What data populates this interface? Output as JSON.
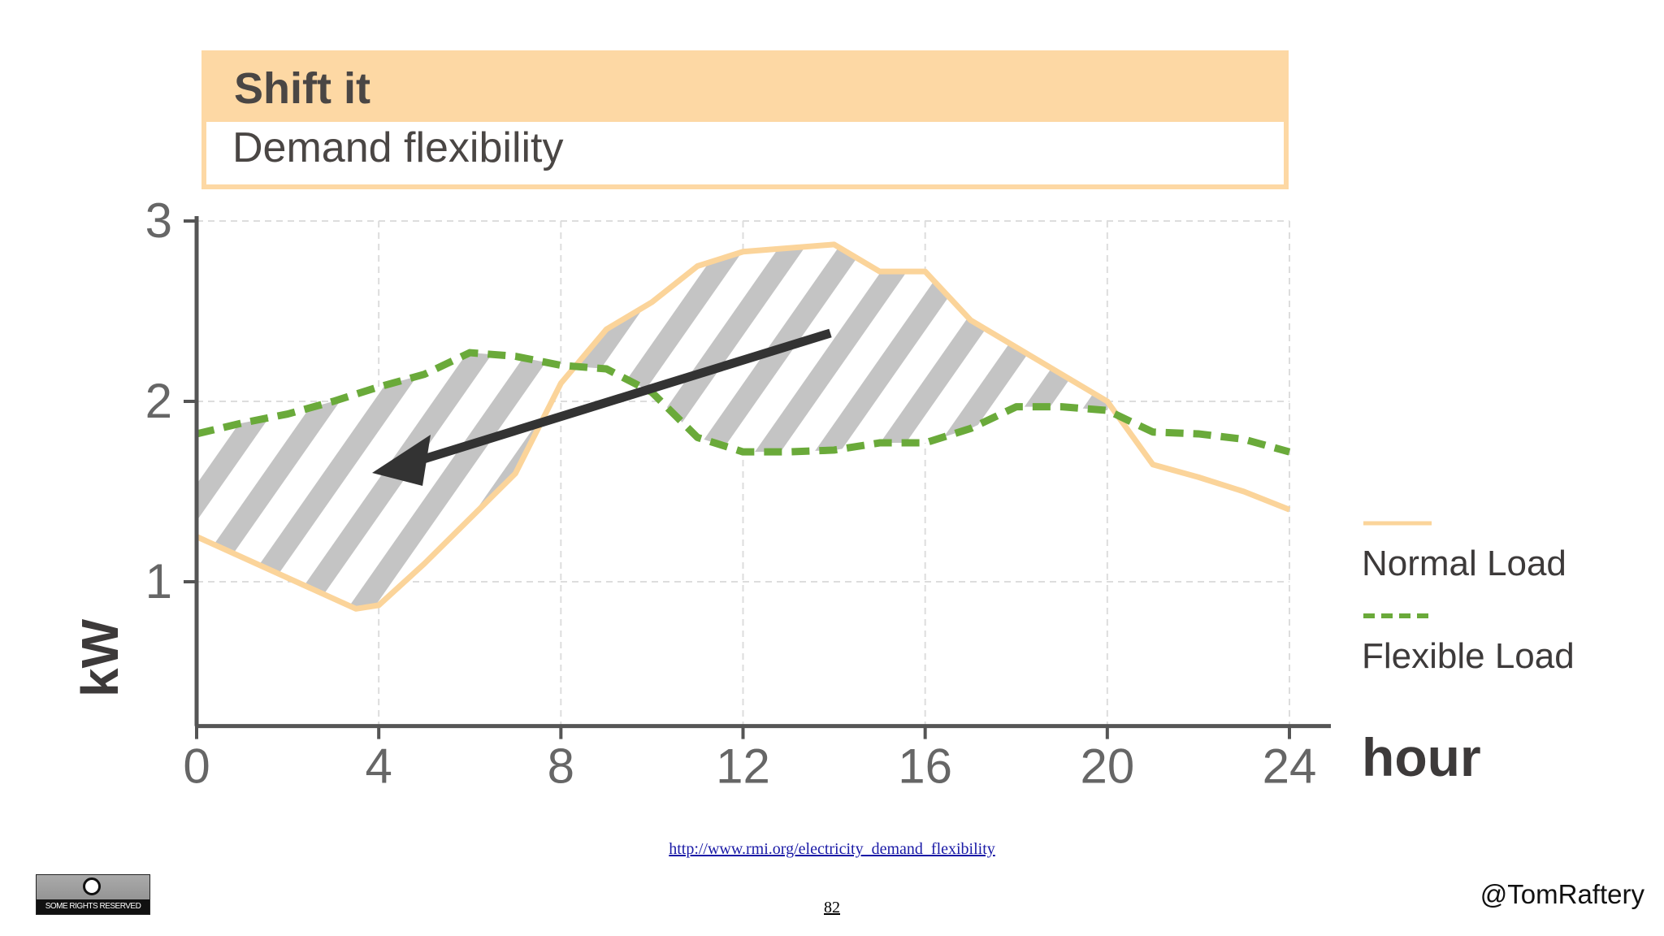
{
  "header": {
    "title": "Shift it",
    "subtitle": "Demand flexibility"
  },
  "chart_data": {
    "type": "line",
    "xlabel": "hour",
    "ylabel": "kW",
    "xlim": [
      0,
      24
    ],
    "ylim": [
      0.2,
      3
    ],
    "xticks": [
      "0",
      "4",
      "8",
      "12",
      "16",
      "20",
      "24"
    ],
    "yticks": [
      "1",
      "2",
      "3"
    ],
    "grid": true,
    "legend_placement": "right",
    "series": [
      {
        "name": "Normal Load",
        "style": "solid",
        "color": "#fbd49a",
        "x": [
          0,
          3.5,
          4,
          5,
          7,
          8,
          9,
          10,
          11,
          12,
          14,
          15,
          16,
          17,
          18,
          19,
          20,
          21,
          22,
          23,
          24
        ],
        "y": [
          1.25,
          0.85,
          0.87,
          1.1,
          1.6,
          2.1,
          2.4,
          2.55,
          2.75,
          2.83,
          2.87,
          2.72,
          2.72,
          2.45,
          2.3,
          2.15,
          2.0,
          1.65,
          1.58,
          1.5,
          1.4
        ]
      },
      {
        "name": "Flexible Load",
        "style": "dashed",
        "color": "#6aaa3a",
        "x": [
          0,
          1,
          2,
          3,
          4,
          5,
          6,
          7,
          8,
          9,
          10,
          11,
          12,
          13,
          14,
          15,
          16,
          17,
          18,
          19,
          20,
          21,
          22,
          23,
          24
        ],
        "y": [
          1.82,
          1.88,
          1.93,
          2.0,
          2.08,
          2.15,
          2.27,
          2.25,
          2.2,
          2.18,
          2.05,
          1.8,
          1.72,
          1.72,
          1.73,
          1.77,
          1.77,
          1.85,
          1.97,
          1.97,
          1.95,
          1.83,
          1.82,
          1.79,
          1.72
        ]
      }
    ],
    "annotation": "arrow from peak-period surplus (hour 14) to early-period deficit (hour 4)",
    "hatch_color": "#c4c4c4"
  },
  "footer": {
    "link": "http://www.rmi.org/electricity_demand_flexibility",
    "page": "82",
    "handle": "@TomRaftery",
    "cc_badge": "SOME RIGHTS RESERVED",
    "cc_symbol": "cc"
  }
}
